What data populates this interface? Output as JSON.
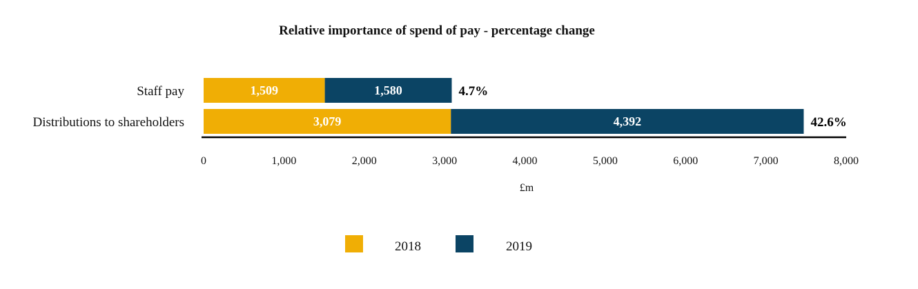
{
  "chart_data": {
    "type": "bar",
    "orientation": "horizontal",
    "stacked": true,
    "title": "Relative importance of spend of pay - percentage change",
    "xlabel": "£m",
    "ylabel": "",
    "xlim": [
      0,
      8000
    ],
    "x_ticks": [
      0,
      1000,
      2000,
      3000,
      4000,
      5000,
      6000,
      7000,
      8000
    ],
    "x_tick_labels": [
      "0",
      "1,000",
      "2,000",
      "3,000",
      "4,000",
      "5,000",
      "6,000",
      "7,000",
      "8,000"
    ],
    "categories": [
      "Staff pay",
      "Distributions to shareholders"
    ],
    "series": [
      {
        "name": "2018",
        "color": "#F0AE05",
        "values": [
          1509,
          3079
        ],
        "labels": [
          "1,509",
          "3,079"
        ]
      },
      {
        "name": "2019",
        "color": "#0B4464",
        "values": [
          1580,
          4392
        ],
        "labels": [
          "1,580",
          "4,392"
        ]
      }
    ],
    "annotations": [
      "4.7%",
      "42.6%"
    ],
    "legend": {
      "position": "bottom",
      "entries": [
        "2018",
        "2019"
      ]
    },
    "grid": false
  }
}
